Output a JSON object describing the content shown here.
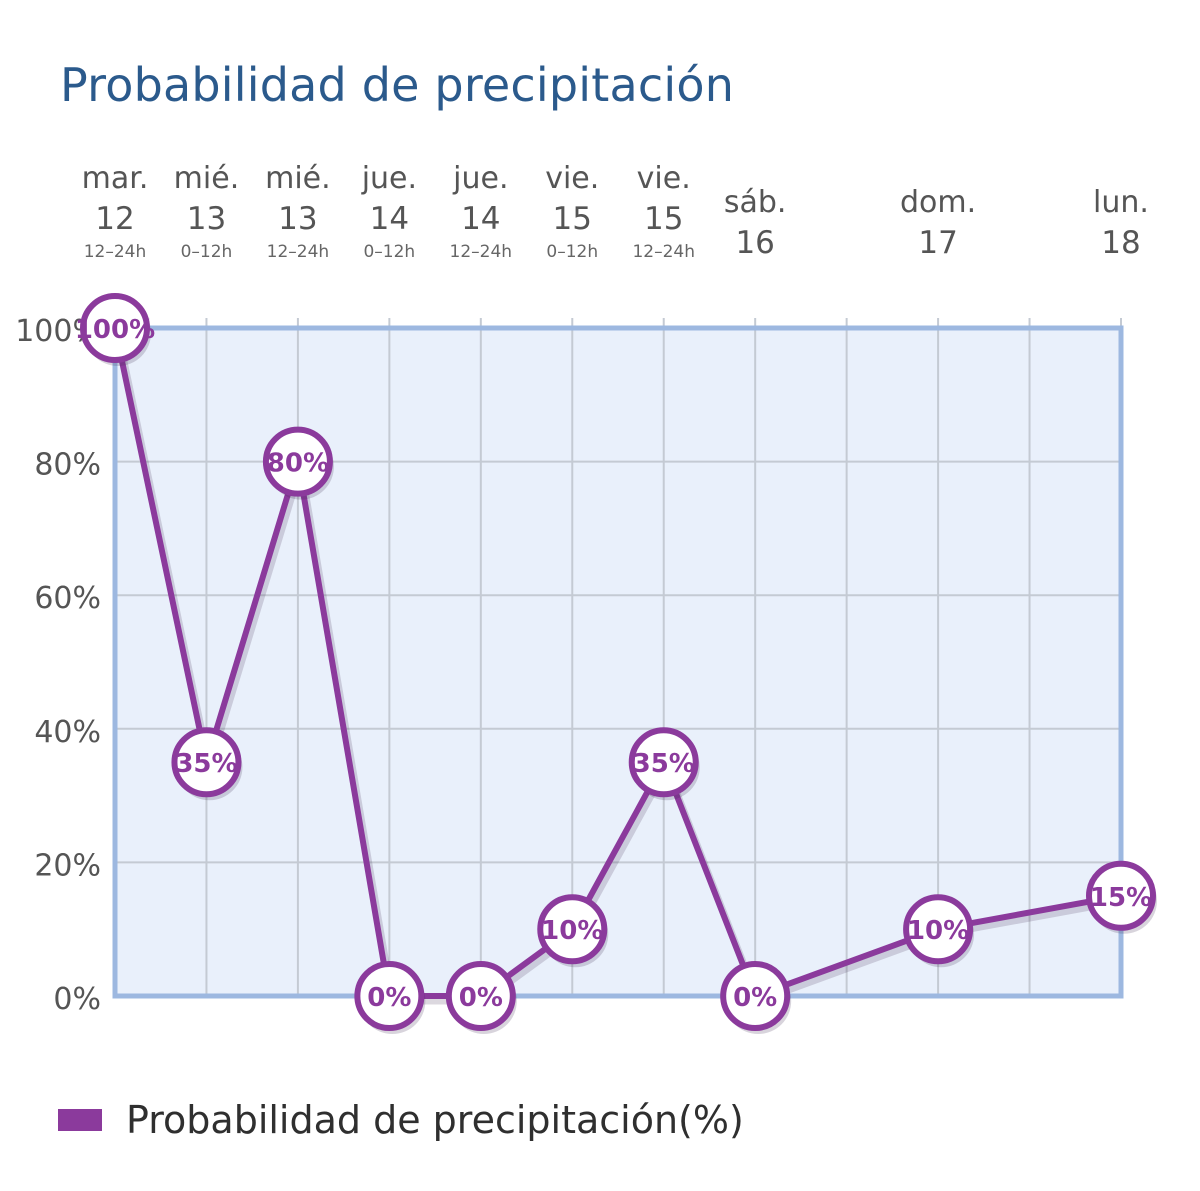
{
  "chart_data": {
    "type": "line",
    "title": "Probabilidad de precipitación",
    "categories": [
      {
        "day": "mar.",
        "date": "12",
        "period": "12–24h",
        "x": 0
      },
      {
        "day": "mié.",
        "date": "13",
        "period": "0–12h",
        "x": 1
      },
      {
        "day": "mié.",
        "date": "13",
        "period": "12–24h",
        "x": 2
      },
      {
        "day": "jue.",
        "date": "14",
        "period": "0–12h",
        "x": 3
      },
      {
        "day": "jue.",
        "date": "14",
        "period": "12–24h",
        "x": 4
      },
      {
        "day": "vie.",
        "date": "15",
        "period": "0–12h",
        "x": 5
      },
      {
        "day": "vie.",
        "date": "15",
        "period": "12–24h",
        "x": 6
      },
      {
        "day": "sáb.",
        "date": "16",
        "period": "",
        "x": 7
      },
      {
        "day": "dom.",
        "date": "17",
        "period": "",
        "x": 9
      },
      {
        "day": "lun.",
        "date": "18",
        "period": "",
        "x": 11
      }
    ],
    "series": [
      {
        "name": "Probabilidad de precipitación(%)",
        "color": "#8b3a9c",
        "values": [
          100,
          35,
          80,
          0,
          0,
          10,
          35,
          0,
          10,
          15
        ],
        "labels": [
          "100%",
          "35%",
          "80%",
          "0%",
          "0%",
          "10%",
          "35%",
          "0%",
          "10%",
          "15%"
        ]
      }
    ],
    "xlim": [
      0,
      11
    ],
    "ylim": [
      0,
      100
    ],
    "yticks": [
      "0%",
      "20%",
      "40%",
      "60%",
      "80%",
      "100%"
    ],
    "grid": true,
    "legend_position": "bottom-left",
    "plot_background": "#e9f0fb",
    "plot_border_color": "#9db8e0",
    "grid_color": "#c4cad3"
  },
  "legend": {
    "label": "Probabilidad de precipitación(%)",
    "color": "#8b3a9c"
  }
}
